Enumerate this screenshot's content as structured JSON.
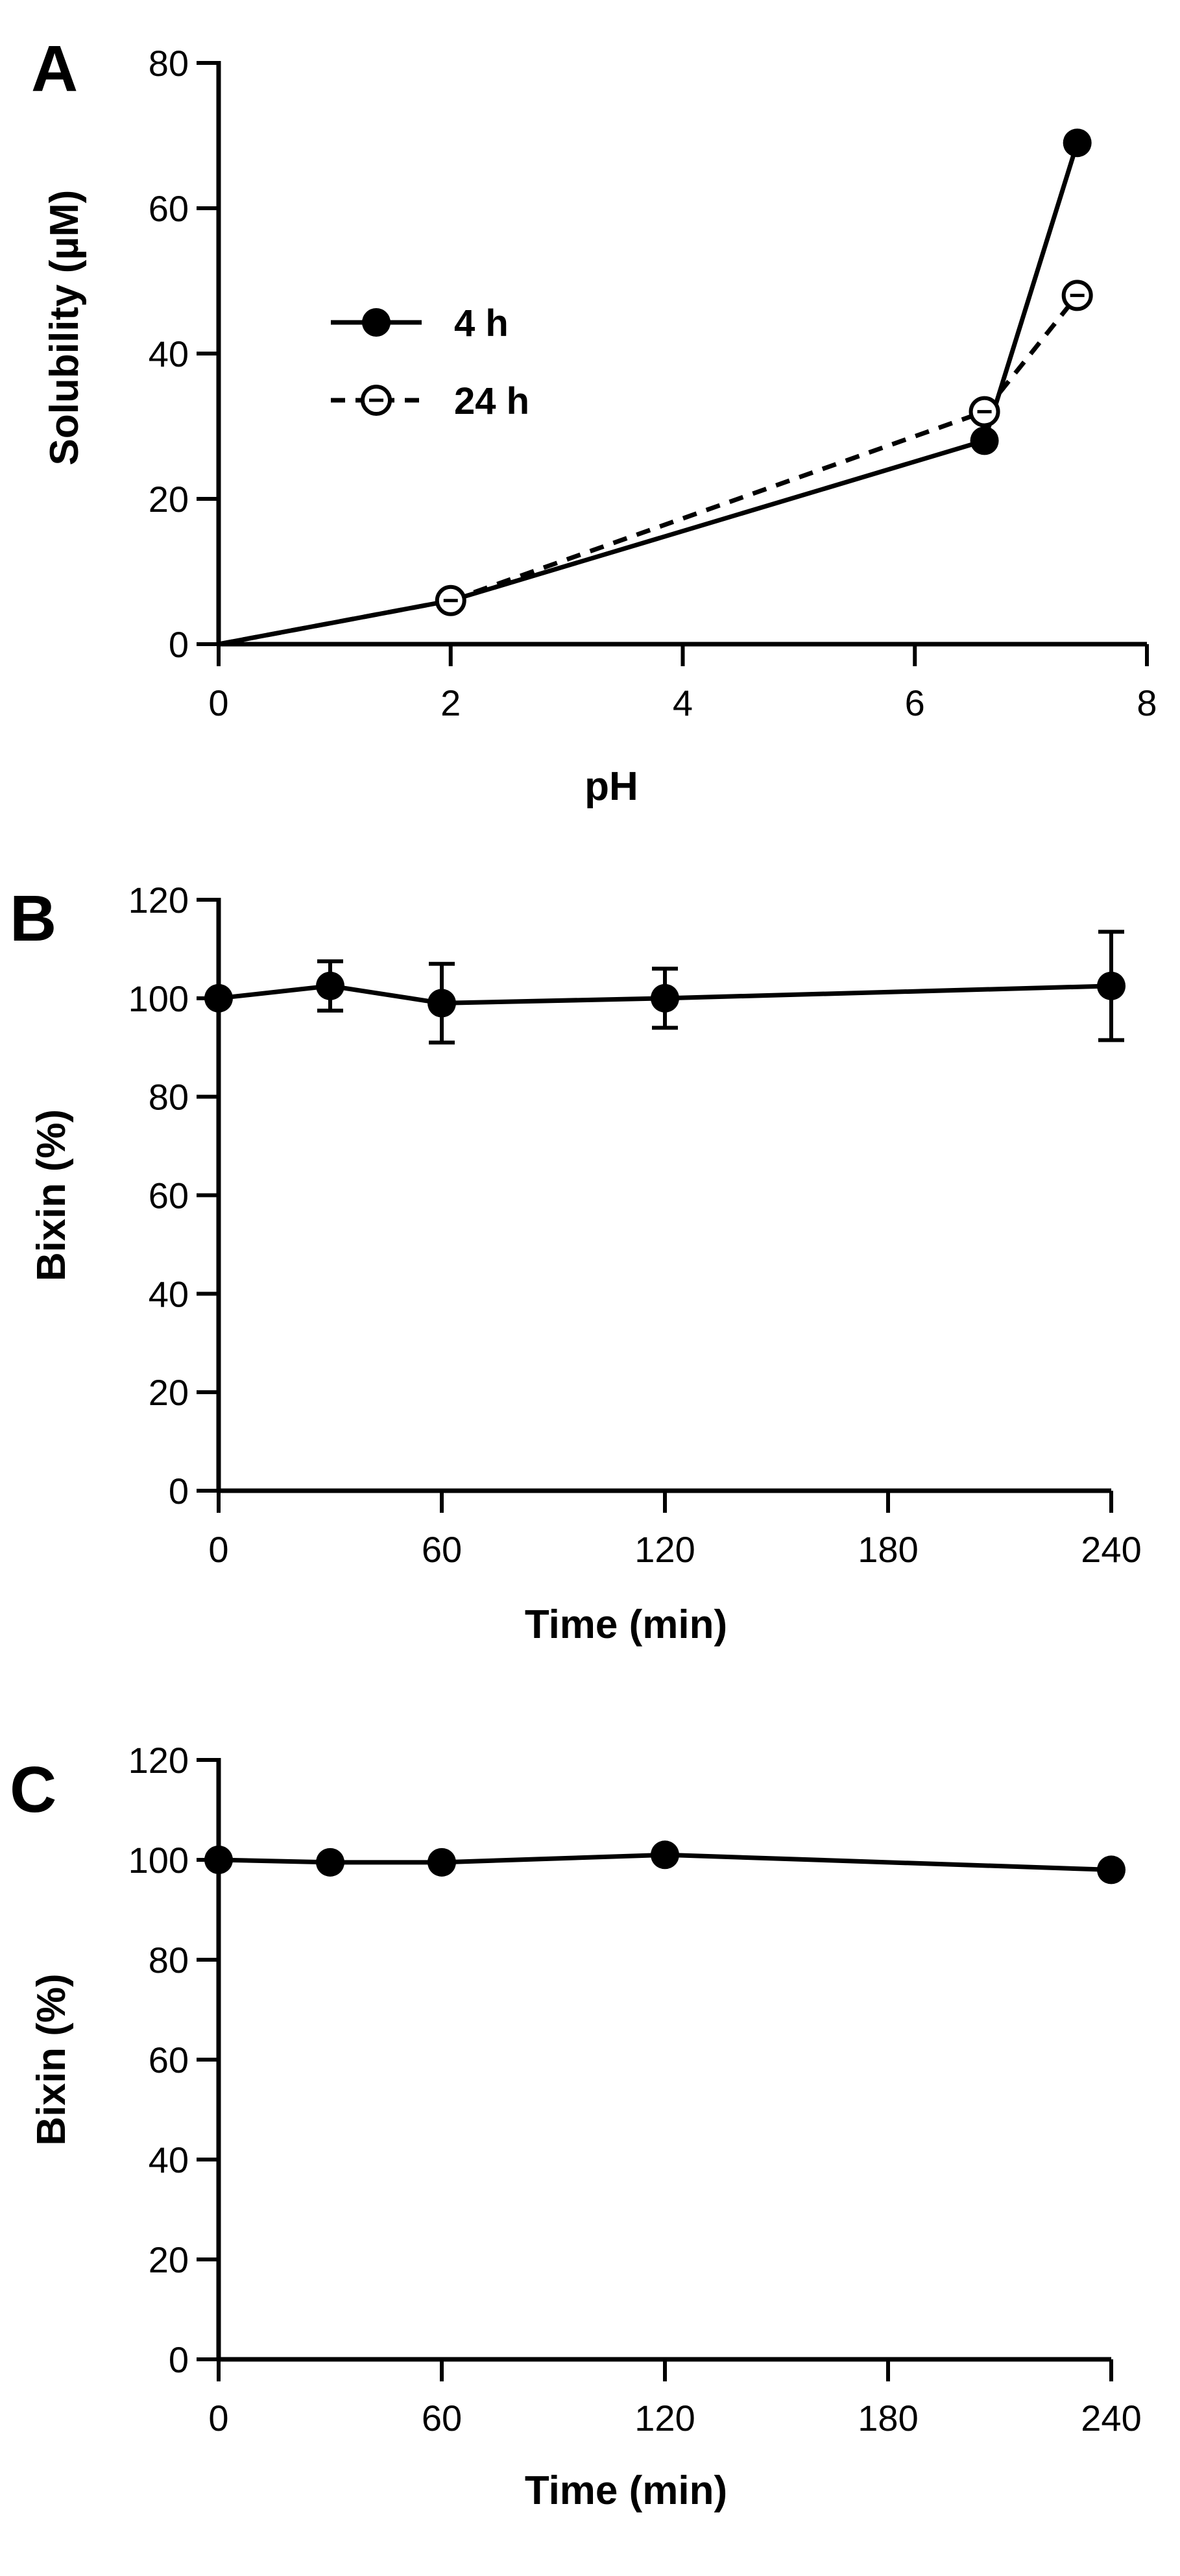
{
  "chart_data": [
    {
      "panel": "A",
      "type": "line",
      "title": "",
      "xlabel": "pH",
      "ylabel": "Solubility (µM)",
      "xlim": [
        0,
        8
      ],
      "ylim": [
        0,
        80
      ],
      "xticks": [
        0,
        2,
        4,
        6,
        8
      ],
      "yticks": [
        0,
        20,
        40,
        60,
        80
      ],
      "grid": false,
      "legend_position": "upper-left",
      "series": [
        {
          "name": "4 h",
          "x": [
            0,
            2,
            6.6,
            7.4
          ],
          "y": [
            0,
            6,
            28,
            69
          ],
          "marker": "filled-circle",
          "line": "solid",
          "origin_marker": false
        },
        {
          "name": "24 h",
          "x": [
            0,
            2,
            6.6,
            7.4
          ],
          "y": [
            0,
            6,
            32,
            48
          ],
          "marker": "open-circle",
          "line": "dashed",
          "origin_marker": false
        }
      ]
    },
    {
      "panel": "B",
      "type": "line",
      "title": "",
      "xlabel": "Time (min)",
      "ylabel": "Bixin (%)",
      "xlim": [
        0,
        240
      ],
      "ylim": [
        0,
        120
      ],
      "xticks": [
        0,
        60,
        120,
        180,
        240
      ],
      "yticks": [
        0,
        20,
        40,
        60,
        80,
        100,
        120
      ],
      "grid": false,
      "series": [
        {
          "name": "Bixin",
          "x": [
            0,
            30,
            60,
            120,
            240
          ],
          "y": [
            100,
            102.5,
            99,
            100,
            102.5
          ],
          "error": [
            0,
            5,
            8,
            6,
            11
          ],
          "marker": "filled-circle",
          "line": "solid"
        }
      ]
    },
    {
      "panel": "C",
      "type": "line",
      "title": "",
      "xlabel": "Time (min)",
      "ylabel": "Bixin (%)",
      "xlim": [
        0,
        240
      ],
      "ylim": [
        0,
        120
      ],
      "xticks": [
        0,
        60,
        120,
        180,
        240
      ],
      "yticks": [
        0,
        20,
        40,
        60,
        80,
        100,
        120
      ],
      "grid": false,
      "series": [
        {
          "name": "Bixin",
          "x": [
            0,
            30,
            60,
            120,
            240
          ],
          "y": [
            100,
            99.5,
            99.5,
            101,
            98
          ],
          "marker": "filled-circle",
          "line": "solid"
        }
      ]
    }
  ]
}
